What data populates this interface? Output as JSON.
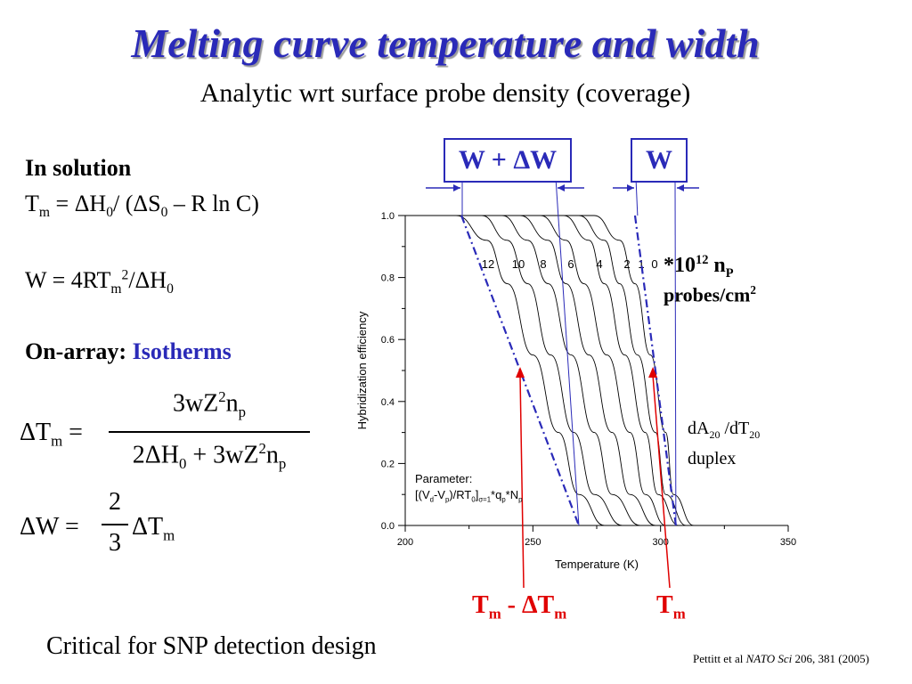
{
  "title": "Melting curve temperature and width",
  "subtitle": "Analytic wrt surface probe density (coverage)",
  "left": {
    "solution_heading": "In solution",
    "tm_line": {
      "a": "T",
      "a_sub": "m",
      "b": " = ΔH",
      "b_sub": "0",
      "c": "/ (ΔS",
      "c_sub": "0",
      "d": " – R ln C)"
    },
    "w_line": {
      "a": "W = 4RT",
      "a_sub": "m",
      "a_sup": "2",
      "b": "/ΔH",
      "b_sub": "0"
    },
    "array_heading": "On-array:",
    "array_heading_blue": "Isotherms",
    "eq1": {
      "lhs": "ΔT",
      "lhs_sub": "m",
      "eq": "=",
      "num": "3wZ",
      "num_sup": "2",
      "num_b": "n",
      "num_sub": "p",
      "den_a": "2ΔH",
      "den_a_sub": "0",
      "den_b": " + 3wZ",
      "den_sup": "2",
      "den_c": "n",
      "den_sub": "p"
    },
    "eq2": {
      "lhs": "ΔW",
      "eq": "=",
      "num": "2",
      "den": "3",
      "rhs": "ΔT",
      "rhs_sub": "m"
    }
  },
  "boxes": {
    "wide": "W + ΔW",
    "narrow": "W"
  },
  "density_label": {
    "a": "*10",
    "a_sup": "12",
    "b": "  n",
    "b_sub": "P",
    "c": "probes/cm",
    "c_sup": "2"
  },
  "duplex_label": {
    "a": "dA",
    "a_sub": "20",
    "b": " /dT",
    "b_sub": "20",
    "c": "duplex"
  },
  "parameter_label": {
    "line1": "Parameter:",
    "l2a": "[(V",
    "l2s1": "d",
    "l2b": "-V",
    "l2s2": "p",
    "l2c": ")/RT",
    "l2s3": "0",
    "l2d": "]",
    "l2s4": "σ=1",
    "l2e": "*q",
    "l2s5": "p",
    "l2f": "*N",
    "l2s6": "p"
  },
  "red_labels": {
    "left": {
      "a": "T",
      "a_sub": "m",
      "b": " - ΔT",
      "b_sub": "m"
    },
    "right": {
      "a": "T",
      "a_sub": "m"
    }
  },
  "footer": "Critical for SNP detection design",
  "citation": {
    "a": "Pettitt et al ",
    "journal": "NATO Sci",
    "b": "  206, 381 (2005)"
  },
  "colors": {
    "accent": "#2a2ab8",
    "red": "#e00000"
  },
  "chart_data": {
    "type": "line",
    "xlabel": "Temperature (K)",
    "ylabel": "Hybridization efficiency",
    "xlim": [
      200,
      350
    ],
    "ylim": [
      0.0,
      1.0
    ],
    "xticks": [
      "200",
      "250",
      "300",
      "350"
    ],
    "yticks": [
      "0.0",
      "0.2",
      "0.4",
      "0.6",
      "0.8",
      "1.0"
    ],
    "curve_labels": [
      "12",
      "10",
      "8",
      "6",
      "4",
      "2",
      "1",
      "0"
    ],
    "series": [
      {
        "label": "12",
        "x": [
          200,
          220,
          232,
          240,
          250,
          260,
          268,
          278
        ],
        "y": [
          1.0,
          1.0,
          0.92,
          0.78,
          0.55,
          0.3,
          0.1,
          0.0
        ]
      },
      {
        "label": "10",
        "x": [
          200,
          230,
          240,
          248,
          257,
          266,
          274,
          285
        ],
        "y": [
          1.0,
          1.0,
          0.92,
          0.78,
          0.55,
          0.3,
          0.1,
          0.0
        ]
      },
      {
        "label": "8",
        "x": [
          200,
          238,
          248,
          256,
          265,
          274,
          281,
          292
        ],
        "y": [
          1.0,
          1.0,
          0.92,
          0.78,
          0.55,
          0.3,
          0.1,
          0.0
        ]
      },
      {
        "label": "6",
        "x": [
          200,
          245,
          256,
          263,
          272,
          281,
          288,
          298
        ],
        "y": [
          1.0,
          1.0,
          0.92,
          0.78,
          0.55,
          0.3,
          0.1,
          0.0
        ]
      },
      {
        "label": "4",
        "x": [
          200,
          253,
          263,
          270,
          279,
          288,
          294,
          302
        ],
        "y": [
          1.0,
          1.0,
          0.92,
          0.78,
          0.55,
          0.3,
          0.1,
          0.0
        ]
      },
      {
        "label": "2",
        "x": [
          200,
          262,
          272,
          278,
          286,
          294,
          299,
          307
        ],
        "y": [
          1.0,
          1.0,
          0.92,
          0.78,
          0.55,
          0.3,
          0.1,
          0.0
        ]
      },
      {
        "label": "1",
        "x": [
          200,
          268,
          278,
          284,
          291,
          298,
          302,
          310
        ],
        "y": [
          1.0,
          1.0,
          0.92,
          0.78,
          0.55,
          0.3,
          0.1,
          0.0
        ]
      },
      {
        "label": "0",
        "x": [
          200,
          274,
          284,
          290,
          296,
          302,
          305,
          313
        ],
        "y": [
          1.0,
          1.0,
          0.92,
          0.78,
          0.55,
          0.3,
          0.1,
          0.0
        ]
      }
    ],
    "tangent_lines": [
      {
        "x": [
          222,
          268
        ],
        "y": [
          1.0,
          0.0
        ]
      },
      {
        "x": [
          290,
          306
        ],
        "y": [
          1.0,
          0.0
        ]
      }
    ],
    "width_lines": [
      {
        "x": [
          223,
          268
        ],
        "y": [
          1.0,
          0.0
        ]
      },
      {
        "x": [
          291,
          306
        ],
        "y": [
          1.0,
          0.0
        ]
      }
    ],
    "arrows_x": [
      245,
      297
    ]
  }
}
